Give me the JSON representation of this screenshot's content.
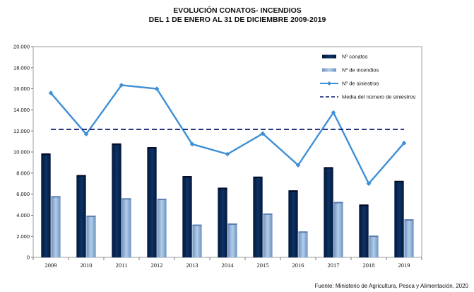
{
  "chart_data": {
    "type": "bar",
    "title": [
      "EVOLUCIÓN CONATOS- INCENDIOS",
      "DEL 1 DE ENERO AL 31 DE DICIEMBRE 2009-2019"
    ],
    "categories": [
      "2009",
      "2010",
      "2011",
      "2012",
      "2013",
      "2014",
      "2015",
      "2016",
      "2017",
      "2018",
      "2019"
    ],
    "series": [
      {
        "name": "Nº conatos",
        "kind": "bar",
        "color": "#0a2a55",
        "values": [
          9800,
          7750,
          10750,
          10400,
          7650,
          6550,
          7600,
          6300,
          8500,
          4950,
          7200
        ]
      },
      {
        "name": "Nº de incendios",
        "kind": "bar",
        "color": "#8aaed6",
        "values": [
          5750,
          3900,
          5550,
          5500,
          3050,
          3150,
          4100,
          2400,
          5200,
          2000,
          3550
        ]
      },
      {
        "name": "Nº de siniestros",
        "kind": "line",
        "color": "#3d8fd6",
        "values": [
          15600,
          11700,
          16350,
          16000,
          10750,
          9800,
          11750,
          8750,
          13750,
          7000,
          10850
        ]
      },
      {
        "name": "Media del número de siniestros",
        "kind": "dashed-line",
        "color": "#0a1a6e",
        "values": [
          12150,
          12150,
          12150,
          12150,
          12150,
          12150,
          12150,
          12150,
          12150,
          12150,
          12150
        ]
      }
    ],
    "yticks": [
      "0",
      "2.000",
      "4.000",
      "6.000",
      "8.000",
      "10.000",
      "12.000",
      "14.000",
      "16.000",
      "18.000",
      "20.000"
    ],
    "ylim": [
      0,
      20000
    ],
    "grid": false,
    "legend_position": "top-right"
  },
  "source": "Fuente: Ministerio de Agricultura, Pesca y Alimentación, 2020"
}
